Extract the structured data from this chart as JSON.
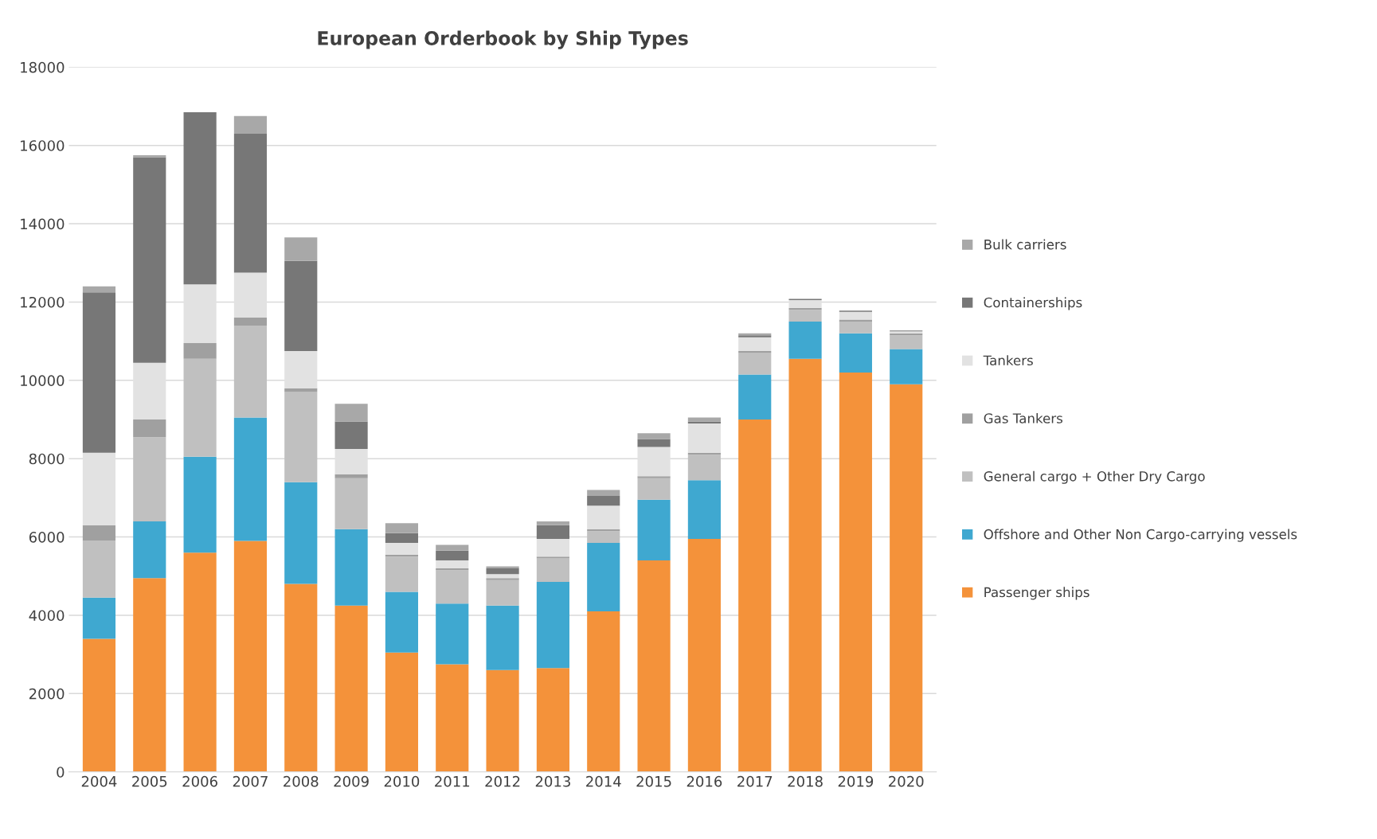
{
  "chart_data": {
    "type": "bar",
    "title": "European Orderbook by Ship Types",
    "stacked": true,
    "categories": [
      "2004",
      "2005",
      "2006",
      "2007",
      "2008",
      "2009",
      "2010",
      "2011",
      "2012",
      "2013",
      "2014",
      "2015",
      "2016",
      "2017",
      "2018",
      "2019",
      "2020"
    ],
    "series": [
      {
        "name": "Passenger ships",
        "color": "#f4923a",
        "values": [
          3400,
          4950,
          5600,
          5900,
          4800,
          4250,
          3050,
          2750,
          2600,
          2650,
          4100,
          5400,
          5950,
          9000,
          10550,
          10200,
          9900
        ]
      },
      {
        "name": "Offshore and Other Non Cargo-carrying vessels",
        "color": "#3fa8d0",
        "values": [
          1050,
          1450,
          2450,
          3150,
          2600,
          1950,
          1550,
          1550,
          1650,
          2200,
          1750,
          1550,
          1500,
          1150,
          950,
          1000,
          900
        ]
      },
      {
        "name": "General cargo + Other Dry Cargo",
        "color": "#c0c0c0",
        "values": [
          1450,
          2150,
          2500,
          2350,
          2300,
          1300,
          900,
          850,
          650,
          600,
          300,
          550,
          650,
          550,
          300,
          300,
          350
        ]
      },
      {
        "name": "Gas Tankers",
        "color": "#a0a0a0",
        "values": [
          400,
          450,
          400,
          200,
          100,
          100,
          50,
          50,
          50,
          50,
          50,
          50,
          50,
          50,
          50,
          50,
          50
        ]
      },
      {
        "name": "Tankers",
        "color": "#e2e2e2",
        "values": [
          1850,
          1450,
          1500,
          1150,
          950,
          650,
          300,
          200,
          100,
          450,
          600,
          750,
          750,
          350,
          200,
          200,
          50
        ]
      },
      {
        "name": "Containerships",
        "color": "#777777",
        "values": [
          4100,
          5250,
          4400,
          3550,
          2300,
          700,
          250,
          250,
          150,
          350,
          250,
          200,
          50,
          50,
          30,
          30,
          20
        ]
      },
      {
        "name": "Bulk carriers",
        "color": "#a8a8a8",
        "values": [
          150,
          50,
          null,
          450,
          600,
          450,
          250,
          150,
          50,
          100,
          150,
          150,
          100,
          50,
          null,
          null,
          null
        ]
      }
    ],
    "ylim": [
      0,
      18000
    ],
    "yticks": [
      0,
      2000,
      4000,
      6000,
      8000,
      10000,
      12000,
      14000,
      16000,
      18000
    ],
    "grid": "y",
    "legend": "right"
  }
}
